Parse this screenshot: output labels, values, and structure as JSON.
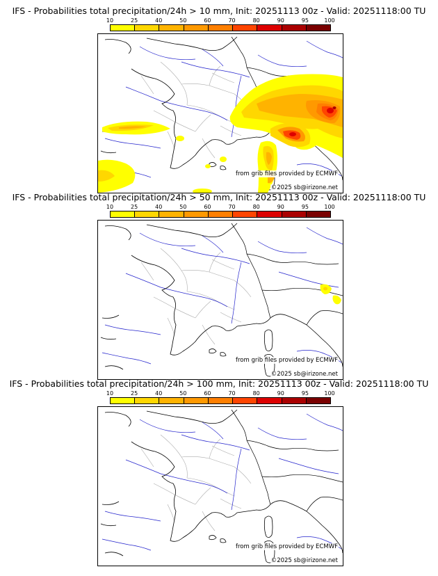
{
  "panels": [
    {
      "title": "IFS - Probabilities total precipitation/24h > 10 mm, Init: 20251113 00z - Valid: 20251118:00 TU"
    },
    {
      "title": "IFS - Probabilities total precipitation/24h > 50 mm, Init: 20251113 00z - Valid: 20251118:00 TU"
    },
    {
      "title": "IFS - Probabilities total precipitation/24h > 100 mm, Init: 20251113 00z - Valid: 20251118:00 TU"
    }
  ],
  "colorbar": {
    "ticks": [
      "10",
      "25",
      "40",
      "50",
      "60",
      "70",
      "80",
      "90",
      "95",
      "100"
    ],
    "colors": [
      "#ffff00",
      "#ffd700",
      "#ffb300",
      "#ff9900",
      "#ff7f00",
      "#ff4500",
      "#dd0000",
      "#aa0000",
      "#7a0000"
    ]
  },
  "credits": {
    "source": "from grib files provided by ECMWF",
    "copyright": "©2025 sb@irizone.net"
  },
  "map_colors": {
    "coast": "#000000",
    "rivers": "#2222cc",
    "regions": "#aaaaaa"
  }
}
